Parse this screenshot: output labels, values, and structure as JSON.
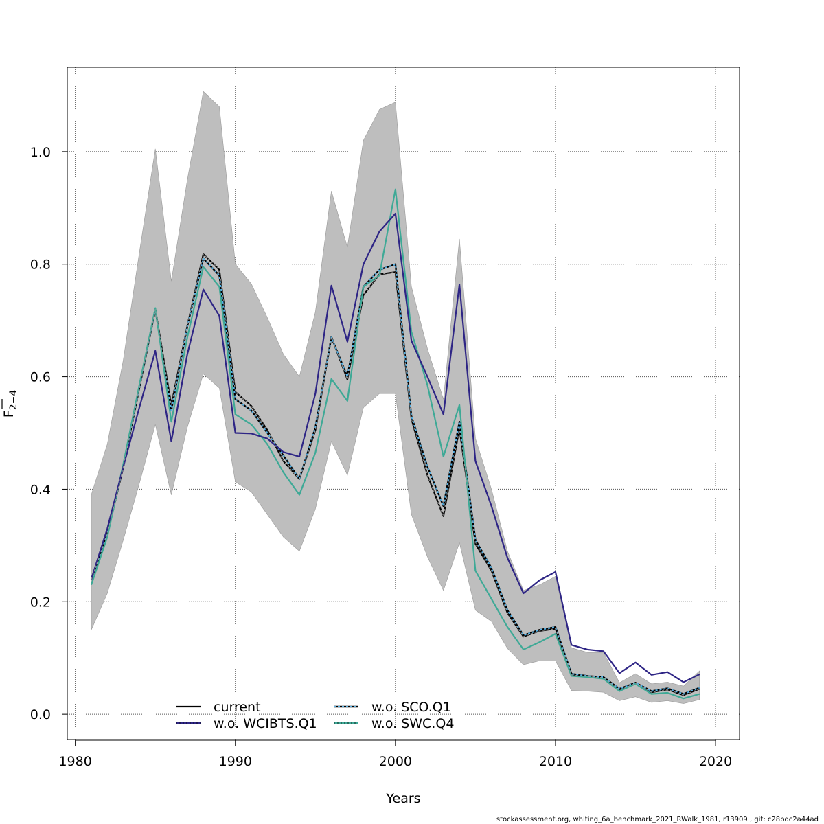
{
  "chart_data": {
    "type": "line",
    "xlabel": "Years",
    "ylabel": "F",
    "ylabel_subscript": "2−4",
    "xlim": [
      1979.5,
      2021.5
    ],
    "ylim": [
      -0.045,
      1.15
    ],
    "x_ticks": [
      1980,
      1990,
      2000,
      2010,
      2020
    ],
    "y_ticks": [
      0.0,
      0.2,
      0.4,
      0.6,
      0.8,
      1.0
    ],
    "x_tick_labels": [
      "1980",
      "1990",
      "2000",
      "2010",
      "2020"
    ],
    "y_tick_labels": [
      "0.0",
      "0.2",
      "0.4",
      "0.6",
      "0.8",
      "1.0"
    ],
    "grid": true,
    "legend_placement": "bottom-center",
    "x": [
      1981,
      1982,
      1983,
      1984,
      1985,
      1986,
      1987,
      1988,
      1989,
      1990,
      1991,
      1992,
      1993,
      1994,
      1995,
      1996,
      1997,
      1998,
      1999,
      2000,
      2001,
      2002,
      2003,
      2004,
      2005,
      2006,
      2007,
      2008,
      2009,
      2010,
      2011,
      2012,
      2013,
      2014,
      2015,
      2016,
      2017,
      2018,
      2019
    ],
    "band": {
      "color": "#bebebe",
      "upper": [
        0.39,
        0.48,
        0.63,
        0.82,
        1.005,
        0.77,
        0.95,
        1.107,
        1.08,
        0.8,
        0.765,
        0.705,
        0.64,
        0.6,
        0.715,
        0.93,
        0.83,
        1.02,
        1.075,
        1.088,
        0.76,
        0.65,
        0.56,
        0.845,
        0.49,
        0.4,
        0.29,
        0.22,
        0.23,
        0.245,
        0.118,
        0.11,
        0.11,
        0.056,
        0.072,
        0.054,
        0.057,
        0.05,
        0.077
      ],
      "lower": [
        0.15,
        0.215,
        0.31,
        0.41,
        0.515,
        0.39,
        0.51,
        0.605,
        0.58,
        0.413,
        0.395,
        0.355,
        0.315,
        0.29,
        0.365,
        0.485,
        0.425,
        0.545,
        0.57,
        0.57,
        0.355,
        0.28,
        0.22,
        0.305,
        0.185,
        0.165,
        0.117,
        0.088,
        0.095,
        0.095,
        0.042,
        0.041,
        0.039,
        0.024,
        0.031,
        0.021,
        0.024,
        0.019,
        0.026
      ]
    },
    "series": [
      {
        "name": "current",
        "color": "#000000",
        "dashed": false,
        "values": [
          0.24,
          0.32,
          0.44,
          0.58,
          0.72,
          0.55,
          0.69,
          0.818,
          0.79,
          0.573,
          0.548,
          0.505,
          0.45,
          0.418,
          0.505,
          0.671,
          0.595,
          0.745,
          0.782,
          0.786,
          0.525,
          0.425,
          0.352,
          0.508,
          0.303,
          0.255,
          0.18,
          0.138,
          0.148,
          0.152,
          0.07,
          0.067,
          0.065,
          0.043,
          0.055,
          0.039,
          0.044,
          0.034,
          0.045
        ]
      },
      {
        "name": "w.o. SCO.Q1",
        "color": "#56b4e9",
        "dashed": true,
        "values": [
          0.24,
          0.32,
          0.44,
          0.58,
          0.72,
          0.54,
          0.69,
          0.81,
          0.78,
          0.56,
          0.54,
          0.5,
          0.46,
          0.418,
          0.51,
          0.67,
          0.6,
          0.76,
          0.79,
          0.8,
          0.53,
          0.44,
          0.37,
          0.52,
          0.31,
          0.26,
          0.185,
          0.14,
          0.15,
          0.155,
          0.072,
          0.068,
          0.066,
          0.045,
          0.056,
          0.041,
          0.046,
          0.036,
          0.047
        ]
      },
      {
        "name": "w.o. SWC.Q4",
        "color": "#3ea996",
        "dashed": false,
        "values": [
          0.23,
          0.315,
          0.445,
          0.585,
          0.722,
          0.52,
          0.67,
          0.795,
          0.76,
          0.533,
          0.515,
          0.48,
          0.43,
          0.39,
          0.465,
          0.596,
          0.557,
          0.76,
          0.78,
          0.933,
          0.68,
          0.585,
          0.458,
          0.55,
          0.255,
          0.205,
          0.155,
          0.115,
          0.128,
          0.143,
          0.068,
          0.066,
          0.063,
          0.041,
          0.054,
          0.036,
          0.038,
          0.028,
          0.036
        ]
      },
      {
        "name": "w.o. WCIBTS.Q1",
        "color": "#2e2585",
        "dashed": false,
        "values": [
          0.24,
          0.33,
          0.44,
          0.545,
          0.646,
          0.485,
          0.64,
          0.755,
          0.708,
          0.5,
          0.499,
          0.49,
          0.466,
          0.458,
          0.57,
          0.762,
          0.662,
          0.8,
          0.858,
          0.89,
          0.664,
          0.6,
          0.533,
          0.764,
          0.45,
          0.37,
          0.278,
          0.215,
          0.238,
          0.253,
          0.123,
          0.115,
          0.112,
          0.073,
          0.092,
          0.07,
          0.075,
          0.057,
          0.071
        ]
      }
    ],
    "legend": {
      "left_column": [
        "current",
        "w.o. WCIBTS.Q1"
      ],
      "right_column": [
        "w.o. SCO.Q1",
        "w.o. SWC.Q4"
      ]
    }
  },
  "footer_text": "stockassessment.org, whiting_6a_benchmark_2021_RWalk_1981, r13909 , git: c28bdc2a44ad"
}
